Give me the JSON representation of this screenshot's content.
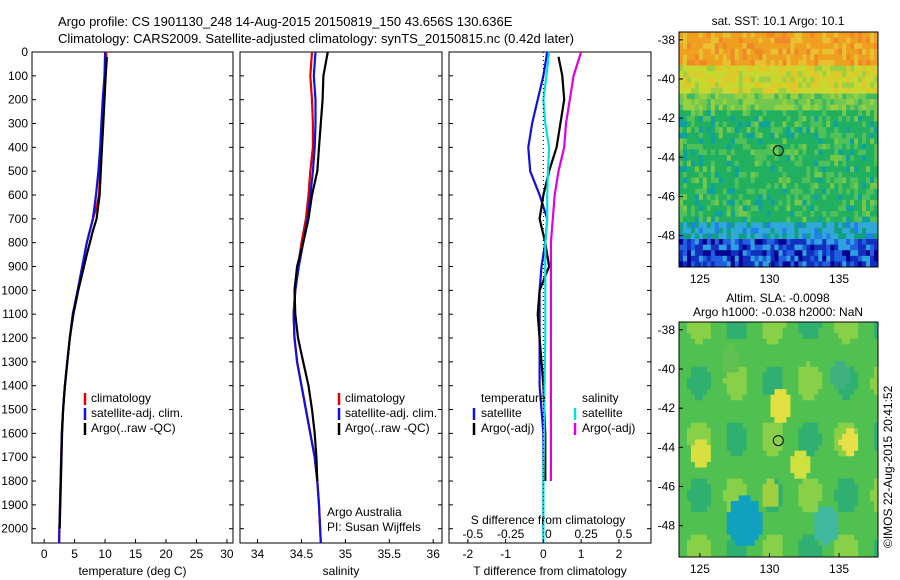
{
  "title_line1": "Argo profile: CS 1901130_248 14-Aug-2015 20150819_150 43.656S 130.636E",
  "title_line2": "Climatology: CARS2009. Satellite-adjusted climatology: synTS_20150815.nc (0.42d later)",
  "timestamp": "©IMOS 22-Aug-2015 20:41:52",
  "colors": {
    "climatology": "#e00000",
    "satellite": "#1010e0",
    "argo": "#000000",
    "salinity_satellite": "#00e0e0",
    "salinity_argo": "#e000e0"
  },
  "chart_data": [
    {
      "type": "line",
      "name": "temperature-profile",
      "xlabel": "temperature (deg C)",
      "ylabel": "",
      "xlim": [
        -2,
        31
      ],
      "ylim": [
        2060,
        0
      ],
      "y_reversed": true,
      "xticks": [
        0,
        5,
        10,
        15,
        20,
        25,
        30
      ],
      "yticks": [
        0,
        100,
        200,
        300,
        400,
        500,
        600,
        700,
        800,
        900,
        1000,
        1100,
        1200,
        1300,
        1400,
        1500,
        1600,
        1700,
        1800,
        1900,
        2000
      ],
      "legend": [
        "climatology",
        "satellite-adj. clim.",
        "Argo(..raw -QC)"
      ],
      "series": [
        {
          "name": "climatology",
          "x": [
            10.2,
            10.0,
            9.8,
            9.6,
            9.4,
            9.2,
            9.0,
            8.6,
            8.0,
            7.0,
            5.5,
            4.7,
            4.2,
            3.8,
            3.4,
            3.1,
            2.9,
            2.8,
            2.7,
            2.6,
            2.5,
            2.45
          ],
          "y": [
            0,
            100,
            200,
            300,
            400,
            500,
            600,
            650,
            700,
            800,
            1000,
            1100,
            1200,
            1300,
            1400,
            1500,
            1600,
            1700,
            1800,
            1900,
            2000,
            2060
          ]
        },
        {
          "name": "satellite-adj. clim.",
          "x": [
            10.0,
            9.9,
            9.6,
            9.4,
            9.2,
            8.9,
            8.5,
            8.0,
            7.0,
            5.5,
            4.7,
            4.2,
            3.8,
            3.4,
            3.1,
            2.9,
            2.8,
            2.7,
            2.6,
            2.5,
            2.45
          ],
          "y": [
            0,
            100,
            200,
            300,
            400,
            500,
            600,
            700,
            800,
            1000,
            1100,
            1200,
            1300,
            1400,
            1500,
            1600,
            1700,
            1800,
            1900,
            2000,
            2060
          ]
        },
        {
          "name": "Argo(..raw -QC)",
          "x": [
            10.3,
            10.1,
            9.9,
            9.7,
            9.5,
            9.3,
            9.1,
            8.6,
            8.0,
            7.0,
            5.6,
            4.8,
            4.2,
            3.8,
            3.4,
            3.1,
            2.95,
            2.85,
            2.75,
            2.65,
            2.55
          ],
          "y": [
            20,
            100,
            200,
            300,
            400,
            500,
            600,
            700,
            750,
            850,
            1000,
            1100,
            1200,
            1300,
            1400,
            1500,
            1600,
            1700,
            1800,
            1900,
            2000
          ]
        }
      ]
    },
    {
      "type": "line",
      "name": "salinity-profile",
      "xlabel": "salinity",
      "ylabel": "",
      "xlim": [
        33.8,
        36.1
      ],
      "ylim": [
        2060,
        0
      ],
      "y_reversed": true,
      "xticks": [
        34,
        34.5,
        35,
        35.5,
        36
      ],
      "legend": [
        "climatology",
        "satellite-adj. clim.",
        "Argo(..raw -QC)"
      ],
      "annotation": [
        "Argo Australia",
        "PI: Susan Wijffels"
      ],
      "series": [
        {
          "name": "climatology",
          "x": [
            34.62,
            34.6,
            34.62,
            34.63,
            34.63,
            34.6,
            34.58,
            34.55,
            34.5,
            34.46,
            34.43,
            34.41,
            34.42,
            34.45,
            34.5,
            34.55,
            34.6,
            34.65,
            34.68,
            34.7,
            34.72
          ],
          "y": [
            0,
            100,
            200,
            300,
            400,
            500,
            600,
            700,
            800,
            900,
            1000,
            1100,
            1200,
            1300,
            1400,
            1500,
            1600,
            1700,
            1800,
            1900,
            2060
          ]
        },
        {
          "name": "satellite-adj. clim.",
          "x": [
            34.66,
            34.64,
            34.66,
            34.66,
            34.65,
            34.63,
            34.6,
            34.57,
            34.52,
            34.47,
            34.43,
            34.41,
            34.42,
            34.45,
            34.5,
            34.55,
            34.6,
            34.65,
            34.68,
            34.7,
            34.72
          ],
          "y": [
            0,
            100,
            200,
            300,
            400,
            500,
            600,
            700,
            800,
            900,
            1000,
            1100,
            1200,
            1300,
            1400,
            1500,
            1600,
            1700,
            1800,
            1900,
            2060
          ]
        },
        {
          "name": "Argo(..raw -QC)",
          "x": [
            34.8,
            34.75,
            34.74,
            34.72,
            34.7,
            34.68,
            34.62,
            34.58,
            34.52,
            34.45,
            34.42,
            34.43,
            34.46,
            34.52,
            34.58,
            34.62,
            34.65,
            34.67,
            34.68
          ],
          "y": [
            0,
            100,
            200,
            300,
            400,
            500,
            600,
            700,
            800,
            900,
            1000,
            1100,
            1200,
            1300,
            1400,
            1500,
            1600,
            1700,
            1800
          ]
        }
      ]
    },
    {
      "type": "line",
      "name": "difference-profile",
      "xlabel": "T difference from climatology",
      "x2label": "S difference from climatology",
      "ylabel": "",
      "xlim": [
        -2.5,
        2.85
      ],
      "ylim": [
        2060,
        0
      ],
      "y_reversed": true,
      "xticks_T": [
        -2,
        -1,
        0,
        1,
        2
      ],
      "xticks_S": [
        "-0.5",
        "-0.25",
        "0",
        "0.25",
        "0.5"
      ],
      "xticks_S_pos": [
        -2,
        -1,
        0,
        1,
        2
      ],
      "legend_left": [
        "temperature",
        "satellite",
        "Argo(-adj)"
      ],
      "legend_right": [
        "salinity",
        "satellite",
        "Argo(-adj)"
      ],
      "series": [
        {
          "name": "temperature satellite",
          "x": [
            0.1,
            0.0,
            -0.15,
            -0.3,
            -0.4,
            -0.35,
            -0.1,
            0.1,
            0.05,
            -0.05,
            -0.1,
            -0.1,
            -0.1,
            -0.05,
            0.0,
            0.0,
            0.0,
            0.0
          ],
          "y": [
            0,
            100,
            200,
            300,
            400,
            500,
            600,
            700,
            800,
            900,
            1000,
            1200,
            1400,
            1500,
            1600,
            1800,
            2000,
            2060
          ]
        },
        {
          "name": "temperature Argo(-adj)",
          "x": [
            0.4,
            0.5,
            0.55,
            0.45,
            0.35,
            0.15,
            0.0,
            -0.1,
            0.05,
            0.15,
            -0.1,
            -0.15,
            -0.1,
            0.0,
            0.05,
            0.05
          ],
          "y": [
            20,
            100,
            200,
            300,
            400,
            500,
            600,
            700,
            800,
            900,
            1000,
            1100,
            1200,
            1400,
            1600,
            1800
          ]
        },
        {
          "name": "salinity satellite",
          "x": [
            0.15,
            0.08,
            0.0,
            0.05,
            0.15,
            0.12,
            0.1,
            0.1,
            0.05,
            0.05,
            0.05,
            0.03,
            0.02,
            0.0,
            0.0,
            0.0
          ],
          "y": [
            0,
            100,
            200,
            300,
            400,
            500,
            600,
            700,
            800,
            1000,
            1200,
            1400,
            1600,
            1800,
            2000,
            2060
          ]
        },
        {
          "name": "salinity Argo(-adj)",
          "x": [
            1.0,
            0.8,
            0.7,
            0.6,
            0.55,
            0.4,
            0.3,
            0.25,
            0.2,
            0.2,
            0.2,
            0.2,
            0.2,
            0.2,
            0.2
          ],
          "y": [
            0,
            100,
            200,
            300,
            400,
            500,
            600,
            700,
            800,
            1000,
            1200,
            1400,
            1600,
            1700,
            1800
          ]
        }
      ]
    },
    {
      "type": "heatmap",
      "name": "sst-map",
      "title": "sat. SST: 10.1  Argo: 10.1",
      "xlim": [
        123.5,
        137.8
      ],
      "ylim": [
        -49.6,
        -37.6
      ],
      "xticks": [
        125,
        130,
        135
      ],
      "yticks": [
        -38,
        -40,
        -42,
        -44,
        -46,
        -48
      ],
      "marker": {
        "lon": 130.636,
        "lat": -43.656
      }
    },
    {
      "type": "heatmap",
      "name": "sla-map",
      "title_line1": "Altim. SLA: -0.0098",
      "title_line2": "Argo h1000: -0.038 h2000: NaN",
      "xlim": [
        123.5,
        137.8
      ],
      "ylim": [
        -49.6,
        -37.6
      ],
      "xticks": [
        125,
        130,
        135
      ],
      "yticks": [
        -38,
        -40,
        -42,
        -44,
        -46,
        -48
      ],
      "marker": {
        "lon": 130.636,
        "lat": -43.656
      }
    }
  ]
}
